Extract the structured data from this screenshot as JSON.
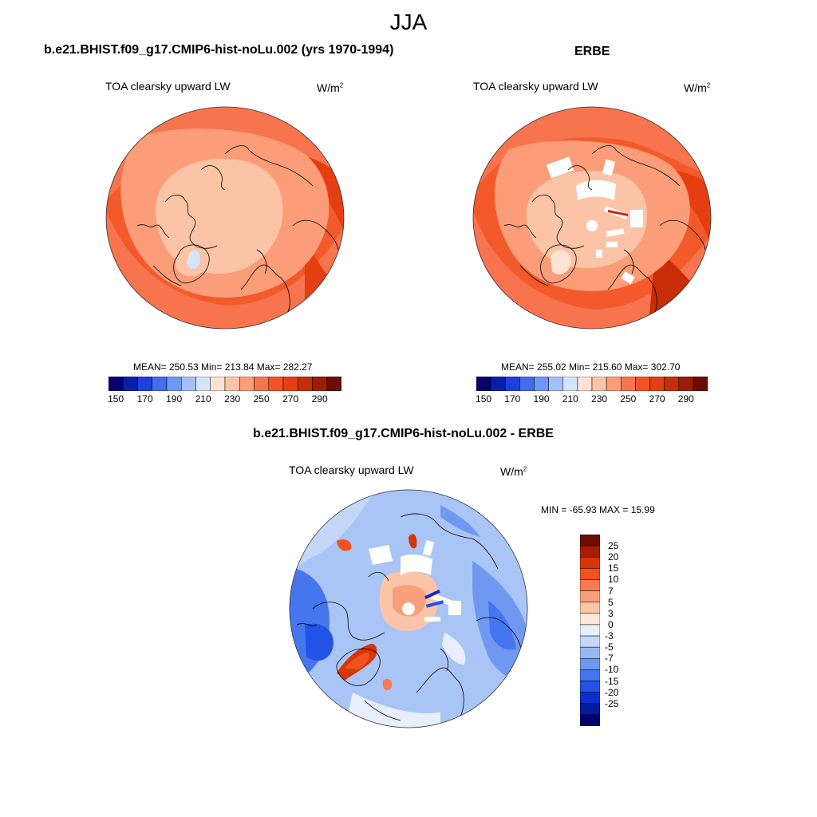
{
  "season": "JJA",
  "panels": [
    {
      "title": "b.e21.BHIST.f09_g17.CMIP6-hist-noLu.002 (yrs 1970-1994)",
      "variable": "TOA clearsky upward LW",
      "units_base": "W/m",
      "units_exp": "2",
      "stats": "MEAN= 250.53  Min= 213.84  Max= 282.27"
    },
    {
      "title": "ERBE",
      "variable": "TOA clearsky upward LW",
      "units_base": "W/m",
      "units_exp": "2",
      "stats": "MEAN= 255.02  Min= 215.60  Max= 302.70"
    },
    {
      "title": "b.e21.BHIST.f09_g17.CMIP6-hist-noLu.002 - ERBE",
      "variable": "TOA clearsky upward LW",
      "units_base": "W/m",
      "units_exp": "2",
      "stats": "MIN = -65.93 MAX =  15.99"
    }
  ],
  "abs_colorbar": {
    "labels": [
      "150",
      "170",
      "190",
      "210",
      "230",
      "250",
      "270",
      "290"
    ],
    "colors": [
      "#08006e",
      "#0a1fa6",
      "#1e3fd8",
      "#3f6ef0",
      "#6f98f5",
      "#a4c0f8",
      "#d5e4fa",
      "#fde3d2",
      "#fcc4a6",
      "#fa9d78",
      "#f7744f",
      "#f15428",
      "#e53e10",
      "#c72d06",
      "#9c1e02",
      "#6b0d00"
    ]
  },
  "diff_colorbar": {
    "labels": [
      "25",
      "20",
      "15",
      "10",
      "7",
      "5",
      "3",
      "0",
      "-3",
      "-5",
      "-7",
      "-10",
      "-15",
      "-20",
      "-25"
    ],
    "colors": [
      "#6b0d00",
      "#a81e02",
      "#d83508",
      "#f2521f",
      "#f77a52",
      "#fa9f7b",
      "#fcc5a8",
      "#fee8dc",
      "#e8eefb",
      "#c4d7f8",
      "#98b7f4",
      "#6f98f1",
      "#4576ed",
      "#2253e6",
      "#0c2fc8",
      "#041aa0",
      "#00006e"
    ]
  }
}
